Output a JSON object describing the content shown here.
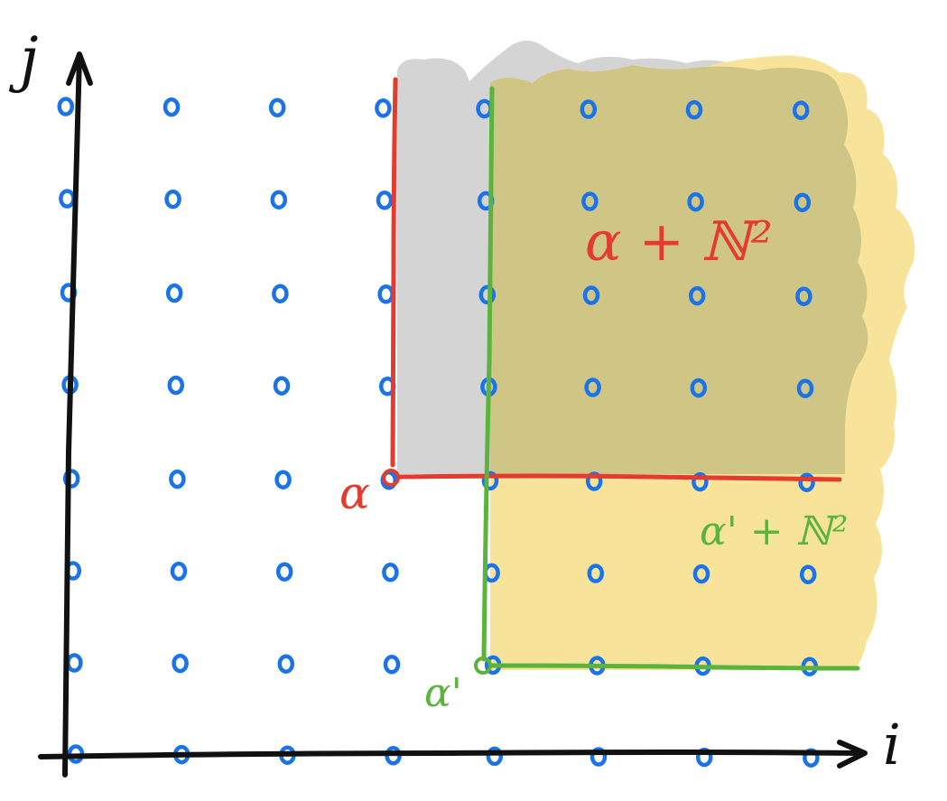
{
  "axes": {
    "x_label": "i",
    "y_label": "j",
    "axis_color": "#111111"
  },
  "lattice": {
    "columns": 8,
    "rows": 8,
    "dot_color": "#1a73e8"
  },
  "regions": [
    {
      "id": "alpha",
      "corner": [
        3,
        3
      ],
      "point_label": "α",
      "set_label": "α + ℕ²",
      "color": "#e53a2e",
      "fill": "#c9c9c9"
    },
    {
      "id": "alpha-prime",
      "corner": [
        4,
        1
      ],
      "point_label": "α'",
      "set_label": "α' + ℕ²",
      "color": "#5ab43c",
      "fill": "#f7e39a"
    }
  ],
  "overlap_fill": "#cdc485"
}
